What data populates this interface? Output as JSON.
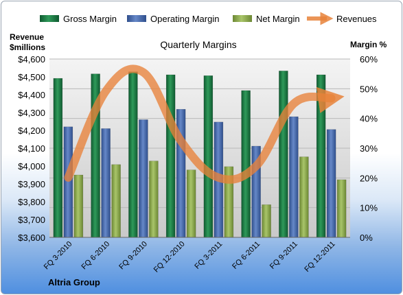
{
  "chart_data": {
    "type": "bar",
    "title": "Quarterly Margins",
    "company": "Altria Group",
    "categories": [
      "FQ 3-2010",
      "FQ 6-2010",
      "FQ 9-2010",
      "FQ 12-2010",
      "FQ 3-2011",
      "FQ 6-2011",
      "FQ 9-2011",
      "FQ 12-2011"
    ],
    "left_axis": {
      "label_line1": "Revenue",
      "label_line2": "$millions",
      "range": [
        3600,
        4600
      ],
      "ticks": [
        "$3,600",
        "$3,700",
        "$3,800",
        "$3,900",
        "$4,000",
        "$4,100",
        "$4,200",
        "$4,300",
        "$4,400",
        "$4,500",
        "$4,600"
      ]
    },
    "right_axis": {
      "label": "Margin %",
      "range": [
        0,
        60
      ],
      "ticks": [
        "0%",
        "10%",
        "20%",
        "30%",
        "40%",
        "50%",
        "60%"
      ]
    },
    "series": [
      {
        "name": "Gross Margin",
        "kind": "bar",
        "axis": "right",
        "color": "#1e7a46",
        "values": [
          53.5,
          55.0,
          55.7,
          54.7,
          54.4,
          49.4,
          56.0,
          54.7
        ]
      },
      {
        "name": "Operating Margin",
        "kind": "bar",
        "axis": "right",
        "color": "#4a6fb4",
        "values": [
          37.2,
          36.6,
          39.6,
          43.1,
          38.8,
          30.7,
          40.6,
          36.3
        ]
      },
      {
        "name": "Net Margin",
        "kind": "bar",
        "axis": "right",
        "color": "#8fae4e",
        "values": [
          21.0,
          24.5,
          25.7,
          22.7,
          23.8,
          11.0,
          27.1,
          19.4
        ]
      },
      {
        "name": "Revenues",
        "kind": "line",
        "axis": "left",
        "color": "#e8823a",
        "values": [
          3935,
          4420,
          4525,
          4140,
          3935,
          4000,
          4350,
          4380
        ]
      }
    ],
    "legend_position": "top",
    "grid": true
  }
}
